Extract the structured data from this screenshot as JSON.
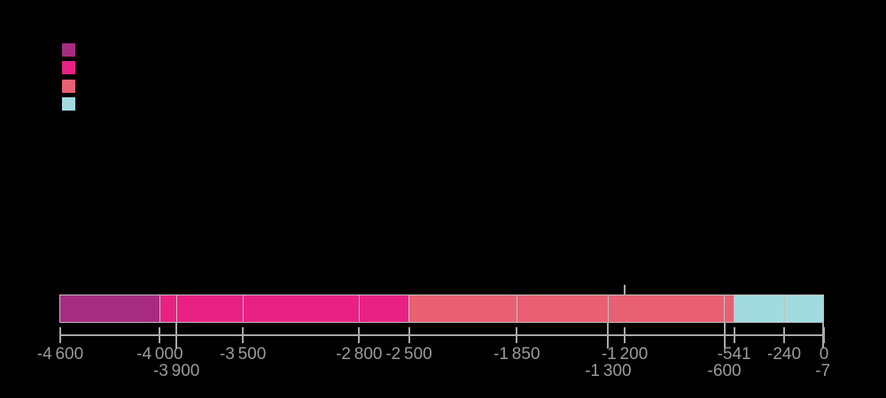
{
  "page": {
    "background": "#000000"
  },
  "legend": {
    "items": [
      {
        "name": "series-1-swatch",
        "color": "#a62c80"
      },
      {
        "name": "series-2-swatch",
        "color": "#e82183"
      },
      {
        "name": "series-3-swatch",
        "color": "#e8607:2"
      },
      {
        "name": "series-4-swatch",
        "color": "#a1dbe0"
      }
    ]
  },
  "chart_data": {
    "type": "bar",
    "subtype": "horizontal-stacked-timeline",
    "xlim": [
      -4600,
      0
    ],
    "grid": false,
    "legend_position": "top-left",
    "colors": {
      "purple": "#a62c80",
      "pink": "#e82183",
      "salmon": "#e86072",
      "blue": "#a1dbe0"
    },
    "segments": [
      {
        "start": -4600,
        "end": -4000,
        "color": "#a62c80"
      },
      {
        "start": -4000,
        "end": -3900,
        "color": "#e82183"
      },
      {
        "start": -3900,
        "end": -3500,
        "color": "#e82183"
      },
      {
        "start": -3500,
        "end": -2800,
        "color": "#e82183"
      },
      {
        "start": -2800,
        "end": -2500,
        "color": "#e82183"
      },
      {
        "start": -2500,
        "end": -1850,
        "color": "#e86072"
      },
      {
        "start": -1850,
        "end": -1300,
        "color": "#e86072"
      },
      {
        "start": -1300,
        "end": -600,
        "color": "#e86072"
      },
      {
        "start": -600,
        "end": -541,
        "color": "#e86072"
      },
      {
        "start": -541,
        "end": -240,
        "color": "#a1dbe0"
      },
      {
        "start": -240,
        "end": -7,
        "color": "#a1dbe0"
      }
    ],
    "ticks": [
      {
        "value": -4600,
        "label": "-4 600",
        "row": 1
      },
      {
        "value": -4000,
        "label": "-4 000",
        "row": 1
      },
      {
        "value": -3900,
        "label": "-3 900",
        "row": 2
      },
      {
        "value": -3500,
        "label": "-3 500",
        "row": 1
      },
      {
        "value": -2800,
        "label": "-2 800",
        "row": 1
      },
      {
        "value": -2500,
        "label": "-2 500",
        "row": 1
      },
      {
        "value": -1850,
        "label": "-1 850",
        "row": 1
      },
      {
        "value": -1300,
        "label": "-1 300",
        "row": 2
      },
      {
        "value": -1200,
        "label": "-1 200",
        "row": 1
      },
      {
        "value": -600,
        "label": "-600",
        "row": 2
      },
      {
        "value": -541,
        "label": "-541",
        "row": 1
      },
      {
        "value": -240,
        "label": "-240",
        "row": 1
      },
      {
        "value": -7,
        "label": "-7",
        "row": 2
      },
      {
        "value": 0,
        "label": "0",
        "row": 1
      }
    ],
    "marker": {
      "value": -1200
    }
  }
}
